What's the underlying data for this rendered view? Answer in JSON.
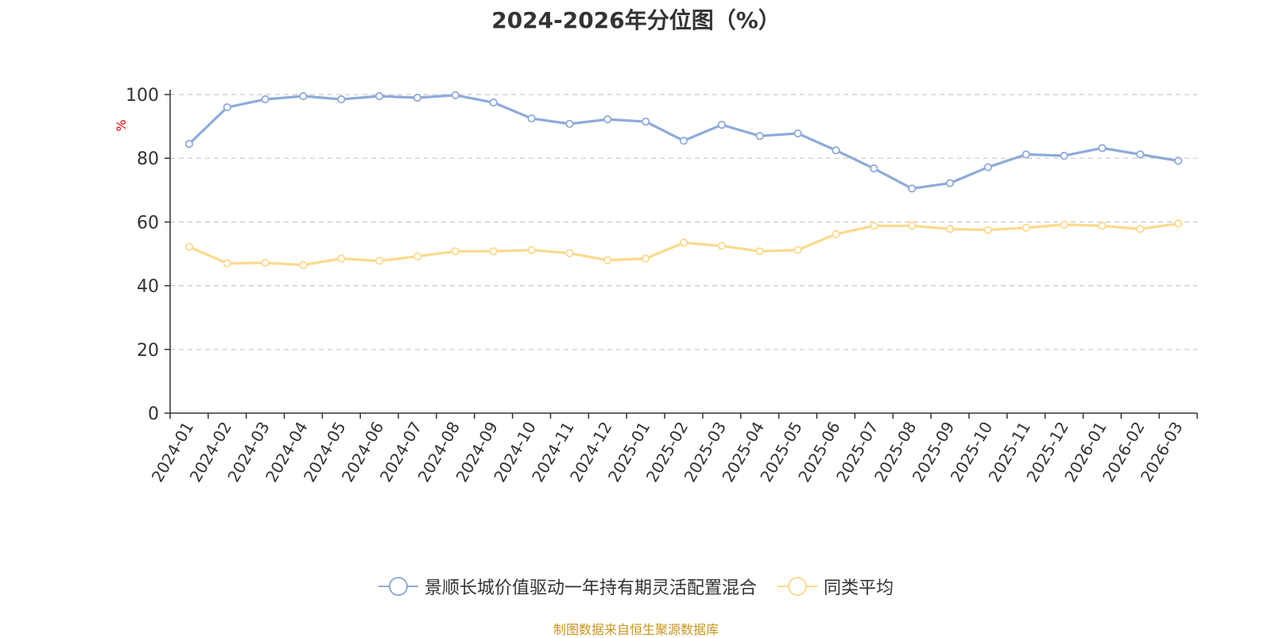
{
  "chart_data": {
    "type": "line",
    "title": "2024-2026年分位图（%）",
    "ylabel": "%",
    "xlabel": "",
    "ylim": [
      0,
      100
    ],
    "yticks": [
      0,
      20,
      40,
      60,
      80,
      100
    ],
    "grid": "horizontal dashed",
    "legend_position": "bottom-center",
    "categories": [
      "2024-01",
      "2024-02",
      "2024-03",
      "2024-04",
      "2024-05",
      "2024-06",
      "2024-07",
      "2024-08",
      "2024-09",
      "2024-10",
      "2024-11",
      "2024-12",
      "2025-01",
      "2025-02",
      "2025-03",
      "2025-04",
      "2025-05",
      "2025-06",
      "2025-07",
      "2025-08",
      "2025-09",
      "2025-10",
      "2025-11",
      "2025-12",
      "2026-01",
      "2026-02",
      "2026-03"
    ],
    "series": [
      {
        "name": "景顺长城价值驱动一年持有期灵活配置混合",
        "color": "#8eaadb",
        "values": [
          84.5,
          96.0,
          98.5,
          99.5,
          98.5,
          99.5,
          99.0,
          99.8,
          97.5,
          92.5,
          90.8,
          92.2,
          91.5,
          85.5,
          90.5,
          87.0,
          87.8,
          82.5,
          76.8,
          70.5,
          72.2,
          77.2,
          81.2,
          80.8,
          83.2,
          81.2,
          79.2
        ]
      },
      {
        "name": "同类平均",
        "color": "#fcd98c",
        "values": [
          52.2,
          47.0,
          47.2,
          46.5,
          48.5,
          47.8,
          49.2,
          50.8,
          50.8,
          51.2,
          50.2,
          48.0,
          48.5,
          53.5,
          52.5,
          50.8,
          51.2,
          56.2,
          58.8,
          58.8,
          57.8,
          57.5,
          58.2,
          59.2,
          58.8,
          57.8,
          59.5
        ]
      }
    ]
  },
  "legend": {
    "items": [
      {
        "label": "景顺长城价值驱动一年持有期灵活配置混合",
        "color": "#8eaadb"
      },
      {
        "label": "同类平均",
        "color": "#fcd98c"
      }
    ]
  },
  "source_text": "制图数据来自恒生聚源数据库"
}
